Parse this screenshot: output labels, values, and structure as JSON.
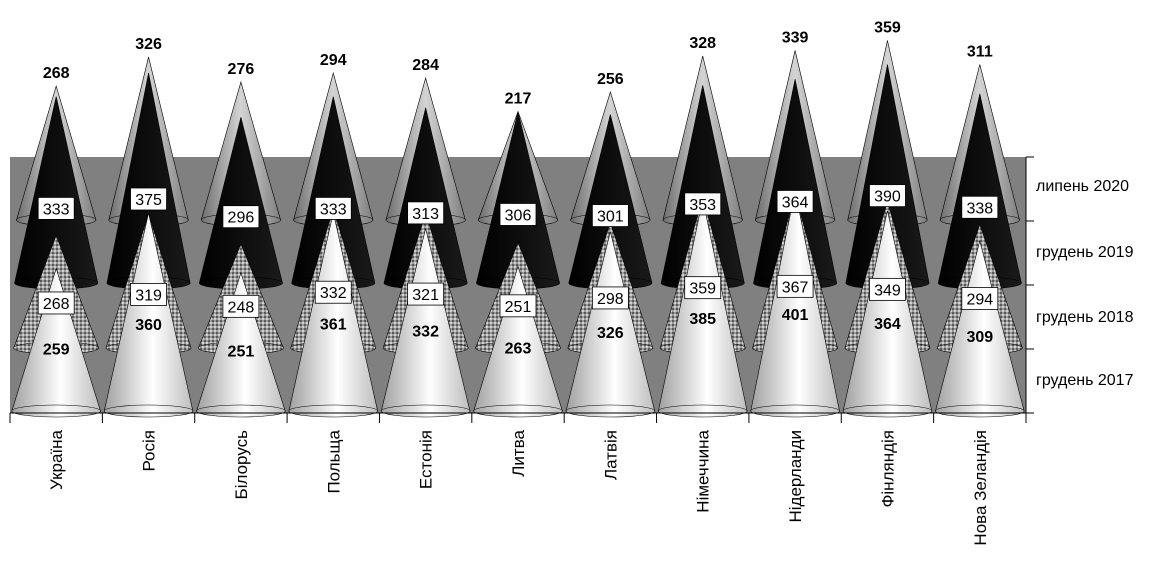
{
  "chart_data": {
    "type": "bar",
    "shape": "3d-cone-stacked-rows",
    "categories": [
      "Україна",
      "Росія",
      "Білорусь",
      "Польща",
      "Естонія",
      "Литва",
      "Латвія",
      "Німеччина",
      "Нідерланди",
      "Фінляндія",
      "Нова Зеландія"
    ],
    "series": [
      {
        "name": "грудень 2017",
        "values": [
          259,
          360,
          251,
          361,
          332,
          263,
          326,
          385,
          401,
          364,
          309
        ]
      },
      {
        "name": "грудень 2018",
        "values": [
          268,
          319,
          248,
          332,
          321,
          251,
          298,
          359,
          367,
          349,
          294
        ]
      },
      {
        "name": "грудень 2019",
        "values": [
          333,
          375,
          296,
          333,
          313,
          306,
          301,
          353,
          364,
          390,
          338
        ]
      },
      {
        "name": "липень 2020",
        "values": [
          268,
          326,
          276,
          294,
          284,
          217,
          256,
          328,
          339,
          359,
          311
        ]
      }
    ],
    "series_colors": {
      "грудень 2017": "#f2f2f2",
      "грудень 2018": "#8c8c8c",
      "грудень 2019": "#000000",
      "липень 2020": "#b4b4b4"
    },
    "wall_color": "#808080",
    "grid": false,
    "legend": "series labels on right depth axis"
  }
}
